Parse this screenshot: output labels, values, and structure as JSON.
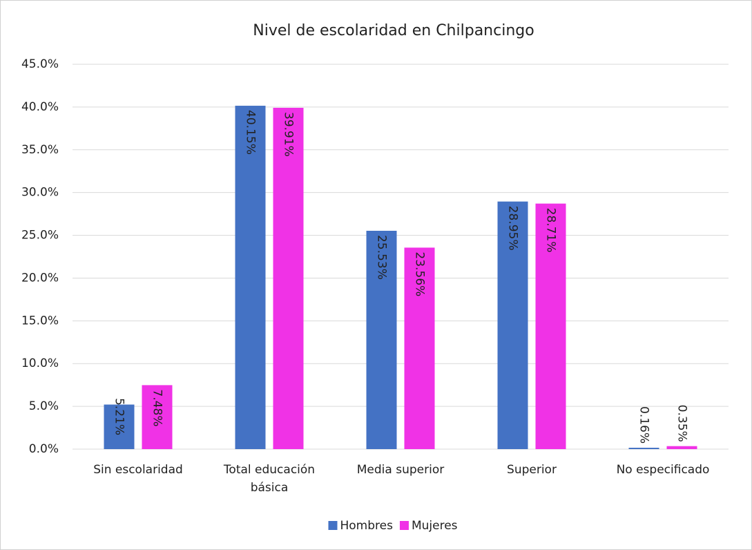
{
  "chart_data": {
    "type": "bar",
    "title": "Nivel de escolaridad en Chilpancingo",
    "categories": [
      "Sin escolaridad",
      "Total educación básica",
      "Media superior",
      "Superior",
      "No especificado"
    ],
    "series": [
      {
        "name": "Hombres",
        "color": "#4472c4",
        "values": [
          5.21,
          40.15,
          25.53,
          28.95,
          0.16
        ],
        "value_labels": [
          "5.21%",
          "40.15%",
          "25.53%",
          "28.95%",
          "0.16%"
        ]
      },
      {
        "name": "Mujeres",
        "color": "#f032e6",
        "values": [
          7.48,
          39.91,
          23.56,
          28.71,
          0.35
        ],
        "value_labels": [
          "7.48%",
          "39.91%",
          "23.56%",
          "28.71%",
          "0.35%"
        ]
      }
    ],
    "ylim": [
      0,
      45
    ],
    "yticks": [
      {
        "value": 0,
        "label": "0.0%"
      },
      {
        "value": 5,
        "label": "5.0%"
      },
      {
        "value": 10,
        "label": "10.0%"
      },
      {
        "value": 15,
        "label": "15.0%"
      },
      {
        "value": 20,
        "label": "20.0%"
      },
      {
        "value": 25,
        "label": "25.0%"
      },
      {
        "value": 30,
        "label": "30.0%"
      },
      {
        "value": 35,
        "label": "35.0%"
      },
      {
        "value": 40,
        "label": "40.0%"
      },
      {
        "value": 45,
        "label": "45.0%"
      }
    ],
    "grid": true,
    "legend": "bottom"
  }
}
